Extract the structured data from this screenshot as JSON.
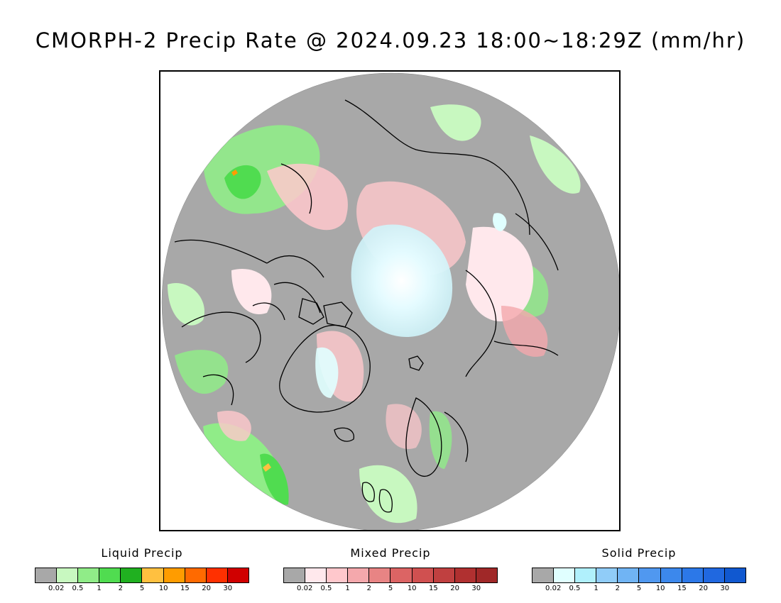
{
  "title": "CMORPH-2 Precip Rate @ 2024.09.23 18:00~18:29Z (mm/hr)",
  "map": {
    "projection": "north polar stereographic",
    "no_data_color": "#a8a8a8"
  },
  "legends": [
    {
      "id": "liquid",
      "title": "Liquid Precip",
      "colors": [
        "#a8a8a8",
        "#c8f8c0",
        "#90ec88",
        "#50dc50",
        "#20b020",
        "#ffc040",
        "#ff9c00",
        "#ff6a00",
        "#ff3000",
        "#d00000"
      ],
      "ticks": [
        "0.02",
        "0.5",
        "1",
        "2",
        "5",
        "10",
        "15",
        "20",
        "30"
      ]
    },
    {
      "id": "mixed",
      "title": "Mixed Precip",
      "colors": [
        "#a8a8a8",
        "#ffe8ec",
        "#ffc8cc",
        "#f4a8ac",
        "#e88484",
        "#dc6464",
        "#d05050",
        "#c04040",
        "#b03030",
        "#a02828"
      ],
      "ticks": [
        "0.02",
        "0.5",
        "1",
        "2",
        "5",
        "10",
        "15",
        "20",
        "30"
      ]
    },
    {
      "id": "solid",
      "title": "Solid Precip",
      "colors": [
        "#a8a8a8",
        "#e0ffff",
        "#b0f0fc",
        "#90ccf8",
        "#70b4f4",
        "#5098f0",
        "#3c88ec",
        "#2c78e8",
        "#2068e0",
        "#1058d0"
      ],
      "ticks": [
        "0.02",
        "0.5",
        "1",
        "2",
        "5",
        "10",
        "15",
        "20",
        "30"
      ]
    }
  ]
}
